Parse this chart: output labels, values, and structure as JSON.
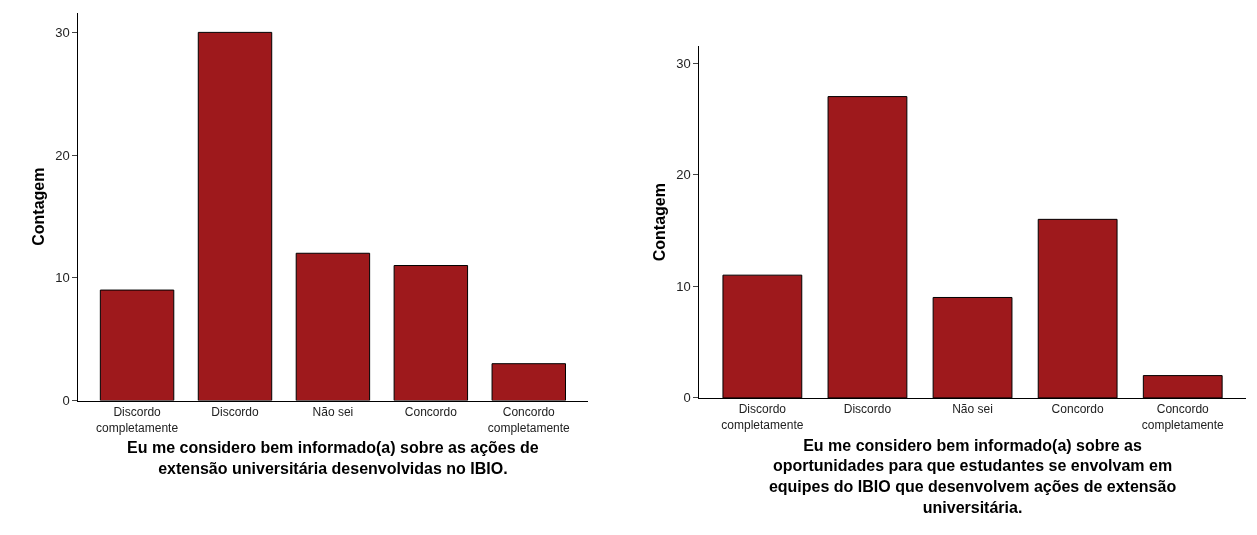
{
  "chart_data": [
    {
      "type": "bar",
      "xlabel": "Eu me considero bem informado(a) sobre as ações de\nextensão universitária desenvolvidas no IBIO.",
      "ylabel": "Contagem",
      "categories": [
        "Discordo\ncompletamente",
        "Discordo",
        "Não sei",
        "Concordo",
        "Concordo\ncompletamente"
      ],
      "values": [
        9,
        30,
        12,
        11,
        3
      ],
      "color": "#9e191c",
      "ylim": [
        0,
        31.6
      ],
      "yticks": [
        0,
        10,
        20,
        30
      ]
    },
    {
      "type": "bar",
      "xlabel": "Eu me considero bem informado(a) sobre as\noportunidades para que estudantes se envolvam em\nequipes do IBIO que desenvolvem ações de extensão\nuniversitária.",
      "ylabel": "Contagem",
      "categories": [
        "Discordo\ncompletamente",
        "Discordo",
        "Não sei",
        "Concordo",
        "Concordo\ncompletamente"
      ],
      "values": [
        11,
        27,
        9,
        16,
        2
      ],
      "color": "#9e191c",
      "ylim": [
        0,
        31.5
      ],
      "yticks": [
        0,
        10,
        20,
        30
      ]
    }
  ]
}
